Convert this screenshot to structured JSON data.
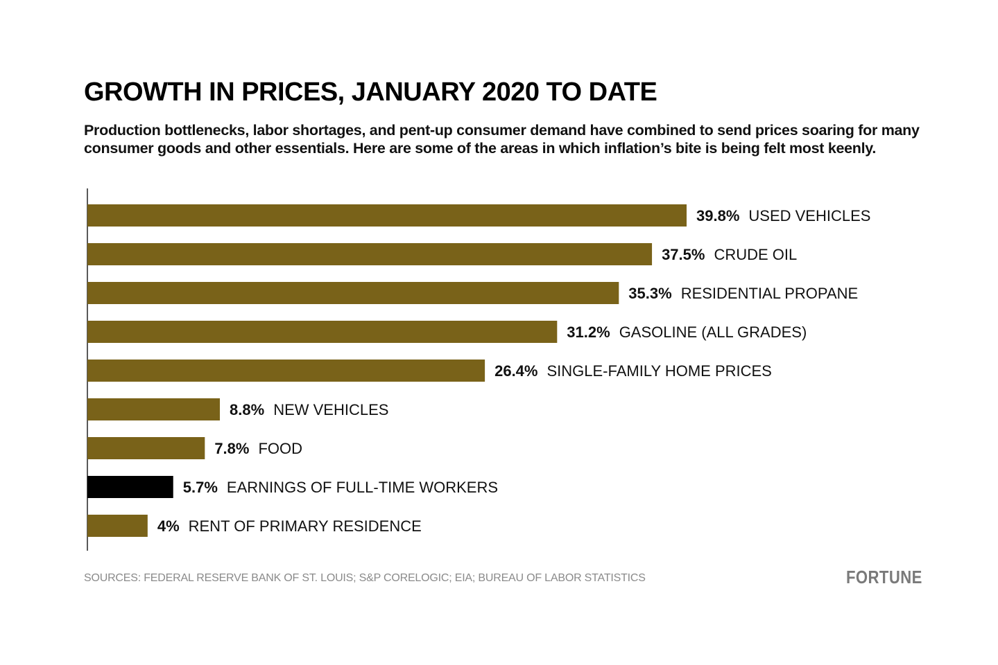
{
  "header": {
    "title": "GROWTH IN PRICES, JANUARY 2020 TO DATE",
    "subtitle": "Production bottlenecks, labor shortages, and pent-up consumer demand have combined to send prices soaring for many consumer goods and other essentials. Here are some of the areas in which inflation’s bite is being felt most keenly."
  },
  "footer": {
    "source": "SOURCES: FEDERAL RESERVE BANK OF ST. LOUIS; S&P CORELOGIC; EIA; BUREAU OF LABOR STATISTICS",
    "logo": "FORTUNE"
  },
  "colors": {
    "bar_default": "#796219",
    "bar_highlight": "#000000",
    "axis": "#222222"
  },
  "chart_data": {
    "type": "bar",
    "orientation": "horizontal",
    "title": "GROWTH IN PRICES, JANUARY 2020 TO DATE",
    "xlabel": "",
    "ylabel": "",
    "grid": false,
    "xlim": [
      0,
      40
    ],
    "categories": [
      "USED VEHICLES",
      "CRUDE OIL",
      "RESIDENTIAL PROPANE",
      "GASOLINE (ALL GRADES)",
      "SINGLE-FAMILY HOME PRICES",
      "NEW VEHICLES",
      "FOOD",
      "EARNINGS OF FULL-TIME WORKERS",
      "RENT OF PRIMARY RESIDENCE"
    ],
    "values": [
      39.8,
      37.5,
      35.3,
      31.2,
      26.4,
      8.8,
      7.8,
      5.7,
      4
    ],
    "value_labels": [
      "39.8%",
      "37.5%",
      "35.3%",
      "31.2%",
      "26.4%",
      "8.8%",
      "7.8%",
      "5.7%",
      "4%"
    ],
    "highlight": [
      false,
      false,
      false,
      false,
      false,
      false,
      false,
      true,
      false
    ],
    "unit": "%"
  }
}
